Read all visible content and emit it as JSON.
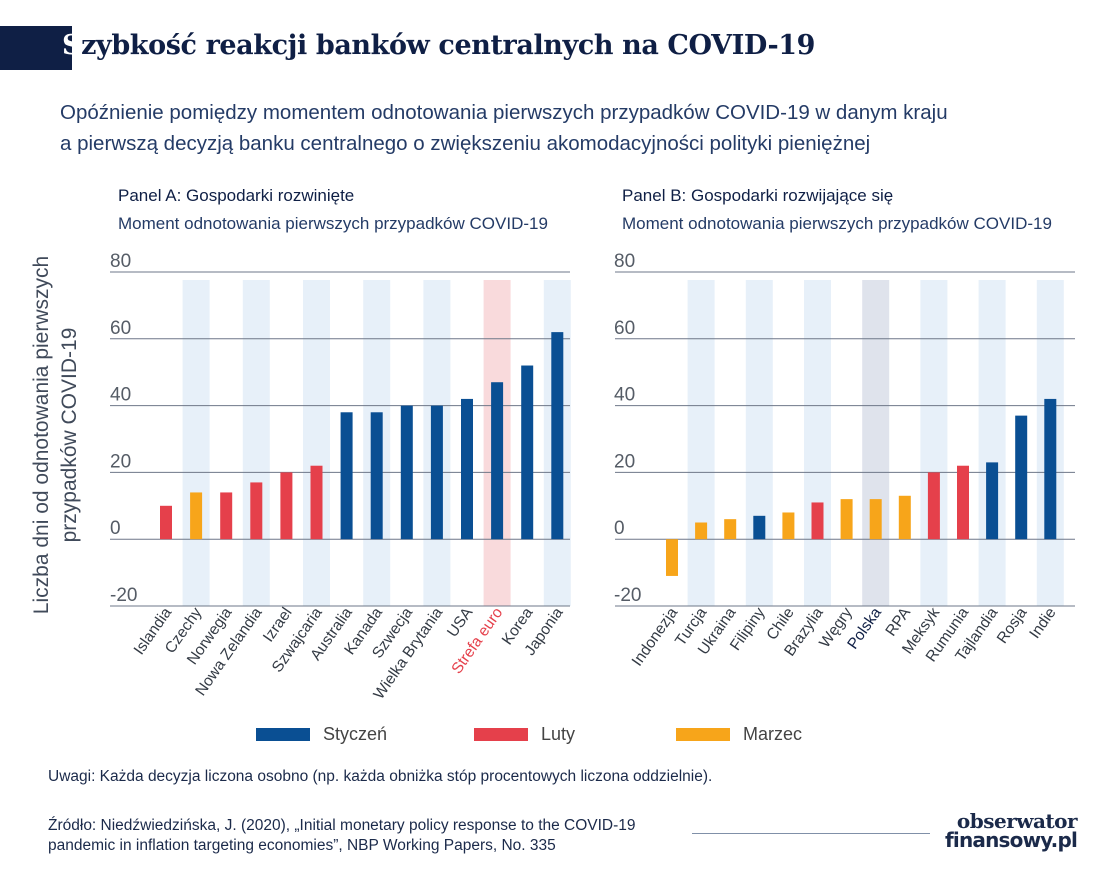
{
  "title_first": "S",
  "title_rest": "zybkość reakcji banków centralnych na COVID-19",
  "subtitle_line1": "Opóźnienie pomiędzy momentem odnotowania pierwszych przypadków COVID-19 w danym kraju",
  "subtitle_line2": "a pierwszą decyzją banku centralnego o zwiększeniu akomodacyjności polityki pieniężnej",
  "y_axis_label_line1": "Liczba dni od odnotowania pierwszych",
  "y_axis_label_line2": "przypadków COVID-19",
  "colors": {
    "Styczeń": "#0a4f93",
    "Luty": "#e5404b",
    "Marzec": "#f7a51a",
    "highlight_blue": "#e7f0f9",
    "highlight_red": "#f9dadc",
    "highlight_gray": "#dfe3ec",
    "grid": "#6e7788",
    "axis_text": "#555c66",
    "label_text": "#333a44",
    "label_red": "#e5404b",
    "label_navy": "#0f1f45"
  },
  "chart_data": [
    {
      "type": "bar",
      "panel": "A",
      "title": "Panel A: Gospodarki rozwinięte",
      "subtitle": "Moment odnotowania pierwszych przypadków COVID-19",
      "ylabel": "Liczba dni od odnotowania pierwszych przypadków COVID-19",
      "ylim": [
        -20,
        80
      ],
      "yticks": [
        -20,
        0,
        20,
        40,
        60,
        80
      ],
      "grid": true,
      "categories": [
        "Islandia",
        "Czechy",
        "Norwegia",
        "Nowa Zelandia",
        "Izrael",
        "Szwajcaria",
        "Australia",
        "Kanada",
        "Szwecja",
        "Wielka Brytania",
        "USA",
        "Strefa euro",
        "Korea",
        "Japonia"
      ],
      "values": [
        10,
        14,
        14,
        17,
        20,
        22,
        38,
        38,
        40,
        40,
        42,
        47,
        52,
        62
      ],
      "month": [
        "Luty",
        "Marzec",
        "Luty",
        "Luty",
        "Luty",
        "Luty",
        "Styczeń",
        "Styczeń",
        "Styczeń",
        "Styczeń",
        "Styczeń",
        "Styczeń",
        "Styczeń",
        "Styczeń"
      ],
      "highlighted": [
        "Czechy",
        "Nowa Zelandia",
        "Szwajcaria",
        "Kanada",
        "Wielka Brytania",
        "Strefa euro",
        "Japonia"
      ],
      "emphasized_label": "Strefa euro"
    },
    {
      "type": "bar",
      "panel": "B",
      "title": "Panel B: Gospodarki rozwijające się",
      "subtitle": "Moment odnotowania pierwszych przypadków COVID-19",
      "ylim": [
        -20,
        80
      ],
      "yticks": [
        -20,
        0,
        20,
        40,
        60,
        80
      ],
      "grid": true,
      "categories": [
        "Indonezja",
        "Turcja",
        "Ukraina",
        "Filipiny",
        "Chile",
        "Brazylia",
        "Węgry",
        "Polska",
        "RPA",
        "Meksyk",
        "Rumunia",
        "Tajlandia",
        "Rosja",
        "Indie"
      ],
      "values": [
        -11,
        5,
        6,
        7,
        8,
        11,
        12,
        12,
        13,
        20,
        22,
        23,
        37,
        42
      ],
      "month": [
        "Marzec",
        "Marzec",
        "Marzec",
        "Styczeń",
        "Marzec",
        "Luty",
        "Marzec",
        "Marzec",
        "Marzec",
        "Luty",
        "Luty",
        "Styczeń",
        "Styczeń",
        "Styczeń"
      ],
      "highlighted": [
        "Turcja",
        "Filipiny",
        "Brazylia",
        "Polska",
        "Meksyk",
        "Tajlandia",
        "Indie"
      ],
      "emphasized_label": "Polska"
    }
  ],
  "legend": [
    {
      "label": "Styczeń",
      "color": "#0a4f93"
    },
    {
      "label": "Luty",
      "color": "#e5404b"
    },
    {
      "label": "Marzec",
      "color": "#f7a51a"
    }
  ],
  "note": "Uwagi: Każda decyzja liczona osobno (np. każda obniżka stóp procentowych liczona oddzielnie).",
  "source_line1": "Źródło: Niedźwiedzińska, J. (2020),  „Initial monetary policy response to the COVID-19",
  "source_line2": "pandemic in inflation targeting economies”, NBP Working Papers, No. 335",
  "logo_top": "obserwator",
  "logo_bottom": "finansowy.pl"
}
